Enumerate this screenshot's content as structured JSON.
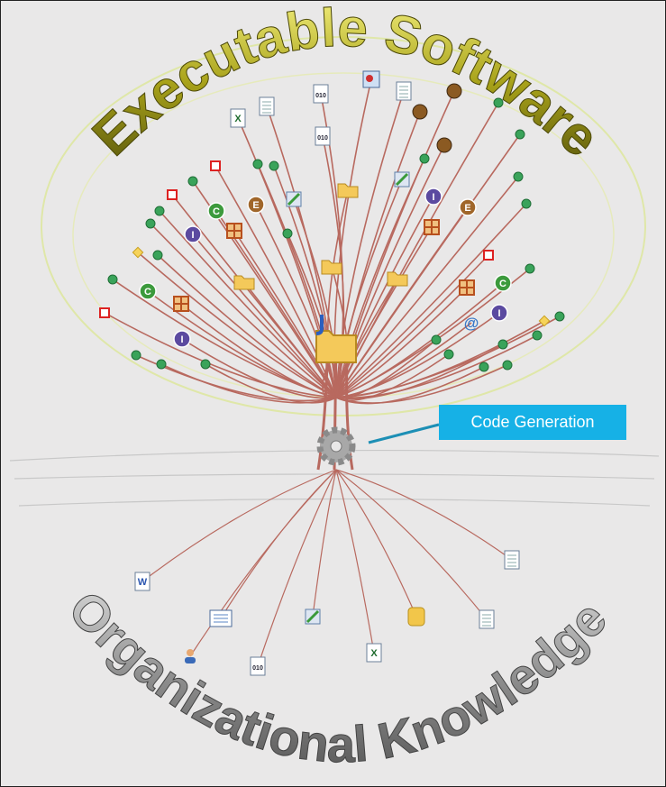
{
  "title_top": "Executable Software",
  "title_bottom": "Organizational Knowledge",
  "callout": "Code Generation",
  "icon_glyphs": {
    "class": "C",
    "enum": "E",
    "interface": "I",
    "binary": "010",
    "excel": "X",
    "word": "W",
    "email": "@"
  }
}
